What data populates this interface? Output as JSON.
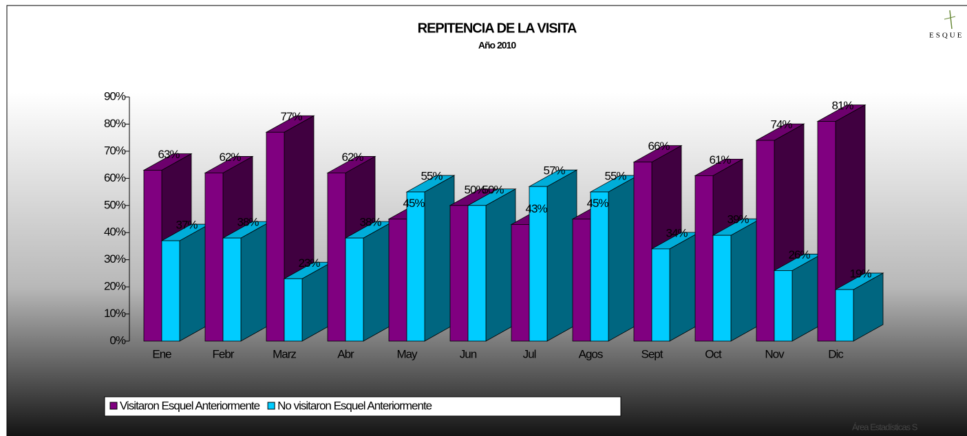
{
  "chart_data": {
    "type": "bar3d",
    "title": "REPITENCIA DE LA VISITA",
    "subtitle": "Año 2010",
    "categories": [
      "Ene",
      "Febr",
      "Marz",
      "Abr",
      "May",
      "Jun",
      "Jul",
      "Agos",
      "Sept",
      "Oct",
      "Nov",
      "Dic"
    ],
    "series": [
      {
        "name": "Visitaron Esquel Anteriormente",
        "color": "#800080",
        "values": [
          63,
          62,
          77,
          62,
          45,
          50,
          43,
          45,
          66,
          61,
          74,
          81
        ],
        "value_labels": [
          "63%",
          "62%",
          "77%",
          "62%",
          "45%",
          "50%",
          "43%",
          "45%",
          "66%",
          "61%",
          "74%",
          "81%"
        ]
      },
      {
        "name": "No visitaron Esquel Anteriormente",
        "color": "#00ccff",
        "values": [
          37,
          38,
          23,
          38,
          55,
          50,
          57,
          55,
          34,
          39,
          26,
          19
        ],
        "value_labels": [
          "37%",
          "38%",
          "23%",
          "38%",
          "55%",
          "50%",
          "57%",
          "55%",
          "34%",
          "39%",
          "26%",
          "19%"
        ]
      }
    ],
    "ylim": [
      0,
      90
    ],
    "yticks": [
      {
        "value": 0,
        "label": "0%"
      },
      {
        "value": 10,
        "label": "10%"
      },
      {
        "value": 20,
        "label": "20%"
      },
      {
        "value": 30,
        "label": "30%"
      },
      {
        "value": 40,
        "label": "40%"
      },
      {
        "value": 50,
        "label": "50%"
      },
      {
        "value": 60,
        "label": "60%"
      },
      {
        "value": 70,
        "label": "70%"
      },
      {
        "value": 80,
        "label": "80%"
      },
      {
        "value": 90,
        "label": "90%"
      }
    ],
    "legend": "bottom-left",
    "logo": "ESQUE",
    "footer": "Área Estadísticas S"
  }
}
